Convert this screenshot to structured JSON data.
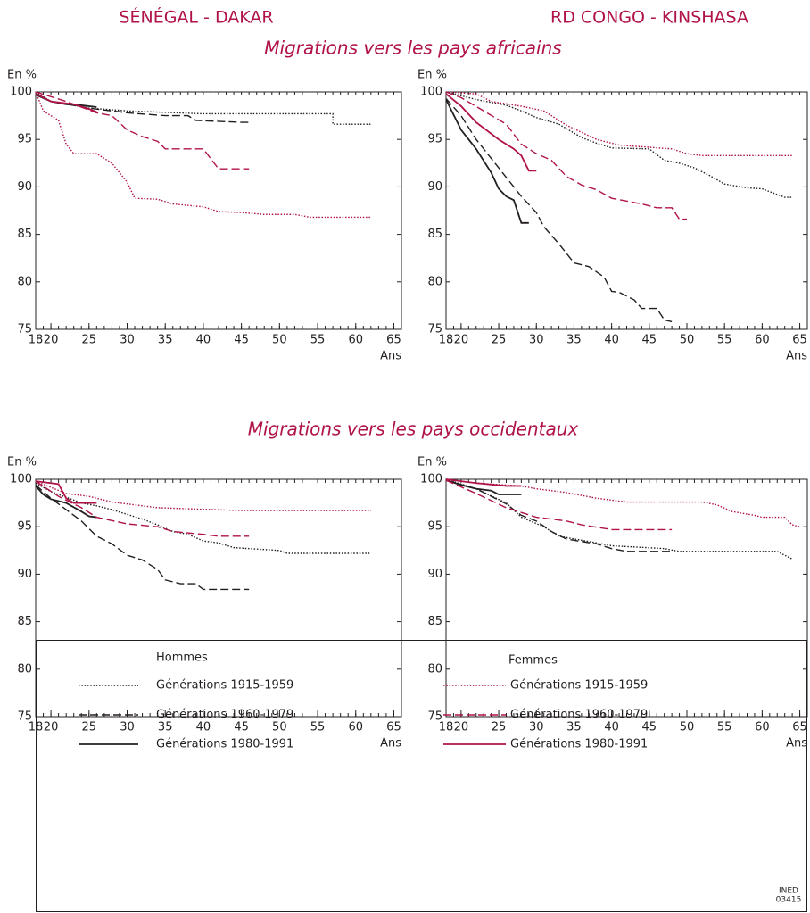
{
  "columns": [
    "SÉNÉGAL - DAKAR",
    "RD CONGO - KINSHASA"
  ],
  "rows": [
    "Migrations vers les pays africains",
    "Migrations vers les pays occidentaux"
  ],
  "legend": [
    {
      "title": "Hommes",
      "entries": [
        {
          "label": "Générations 1915-1959",
          "color": "#231f20",
          "dash": "dotted"
        },
        {
          "label": "Générations 1960-1979",
          "color": "#231f20",
          "dash": "dashed"
        },
        {
          "label": "Générations 1980-1991",
          "color": "#231f20",
          "dash": "solid"
        }
      ]
    },
    {
      "title": "Femmes",
      "entries": [
        {
          "label": "Générations 1915-1959",
          "color": "#b0124a",
          "dash": "dotted"
        },
        {
          "label": "Générations 1960-1979",
          "color": "#b0124a",
          "dash": "dashed"
        },
        {
          "label": "Générations 1980-1991",
          "color": "#b0124a",
          "dash": "solid"
        }
      ]
    }
  ],
  "source": [
    "INED",
    "03415"
  ],
  "chart_data": [
    {
      "type": "line",
      "ylabel": "En %",
      "xlabel": "Ans",
      "xlim": [
        18,
        66
      ],
      "ylim": [
        75,
        100
      ],
      "xticks": [
        18,
        20,
        25,
        30,
        35,
        40,
        45,
        50,
        55,
        60,
        65
      ],
      "yticks": [
        75,
        80,
        85,
        90,
        95,
        100
      ],
      "series": [
        {
          "color": "#231f20",
          "dash": "dotted",
          "x": [
            18,
            20,
            25,
            30,
            40,
            57,
            57,
            62
          ],
          "values": [
            100,
            99,
            98.3,
            98,
            97.7,
            97.7,
            96.6,
            96.6
          ]
        },
        {
          "color": "#231f20",
          "dash": "dashed",
          "x": [
            18,
            20,
            25,
            30,
            35,
            38,
            39,
            45,
            46
          ],
          "values": [
            99.8,
            99,
            98.3,
            97.8,
            97.5,
            97.5,
            97,
            96.8,
            96.8
          ]
        },
        {
          "color": "#231f20",
          "dash": "solid",
          "x": [
            18,
            20,
            22,
            24,
            26
          ],
          "values": [
            99.7,
            99,
            98.7,
            98.6,
            98.4
          ]
        },
        {
          "color": "#b0124a",
          "dash": "dotted",
          "x": [
            18,
            19,
            21,
            22,
            23,
            26,
            28,
            30,
            31,
            34,
            36,
            40,
            42,
            45,
            48,
            52,
            54,
            62
          ],
          "values": [
            100,
            98,
            97,
            94.5,
            93.5,
            93.5,
            92.5,
            90.5,
            88.8,
            88.7,
            88.2,
            87.9,
            87.4,
            87.3,
            87.1,
            87.1,
            86.8,
            86.8
          ]
        },
        {
          "color": "#b0124a",
          "dash": "dashed",
          "x": [
            18,
            22,
            26,
            28,
            30,
            32,
            34,
            35,
            40,
            42,
            46
          ],
          "values": [
            100,
            99,
            97.8,
            97.5,
            96,
            95.3,
            94.8,
            94,
            94,
            91.9,
            91.9
          ]
        },
        {
          "color": "#b0124a",
          "dash": "solid",
          "x": [
            18,
            20,
            23,
            25,
            26
          ],
          "values": [
            99.8,
            99,
            98.7,
            98.2,
            97.9
          ]
        }
      ]
    },
    {
      "type": "line",
      "ylabel": "En %",
      "xlabel": "Ans",
      "xlim": [
        18,
        66
      ],
      "ylim": [
        75,
        100
      ],
      "xticks": [
        18,
        20,
        25,
        30,
        35,
        40,
        45,
        50,
        55,
        60,
        65
      ],
      "yticks": [
        75,
        80,
        85,
        90,
        95,
        100
      ],
      "series": [
        {
          "color": "#231f20",
          "dash": "dotted",
          "x": [
            18,
            22,
            26,
            28,
            30,
            33,
            36,
            38,
            40,
            45,
            47,
            49,
            51,
            53,
            55,
            58,
            60,
            63,
            64
          ],
          "values": [
            100,
            99.2,
            98.6,
            98,
            97.3,
            96.6,
            95.2,
            94.6,
            94.1,
            94,
            92.8,
            92.5,
            92,
            91.2,
            90.3,
            89.9,
            89.8,
            88.9,
            88.9
          ]
        },
        {
          "color": "#231f20",
          "dash": "dashed",
          "x": [
            18,
            20,
            22,
            24,
            26,
            28,
            30,
            31,
            33,
            35,
            37,
            39,
            40,
            41,
            43,
            44,
            46,
            47,
            48
          ],
          "values": [
            99.3,
            97.5,
            95,
            93,
            91,
            89,
            87.3,
            85.8,
            84,
            82,
            81.6,
            80.5,
            79,
            78.9,
            78.1,
            77.2,
            77.2,
            76,
            75.8
          ]
        },
        {
          "color": "#231f20",
          "dash": "solid",
          "x": [
            18,
            20,
            21,
            22,
            24,
            25,
            26,
            27,
            28,
            29
          ],
          "values": [
            99.2,
            96,
            95,
            94,
            91.5,
            89.8,
            89,
            88.6,
            86.2,
            86.2
          ]
        },
        {
          "color": "#b0124a",
          "dash": "dotted",
          "x": [
            18,
            22,
            24,
            28,
            31,
            34,
            38,
            41,
            48,
            50,
            52,
            64
          ],
          "values": [
            100,
            99.8,
            99,
            98.5,
            98,
            96.5,
            95,
            94.4,
            94,
            93.5,
            93.3,
            93.3
          ]
        },
        {
          "color": "#b0124a",
          "dash": "dashed",
          "x": [
            18,
            20,
            23,
            26,
            28,
            30,
            32,
            34,
            36,
            38,
            40,
            44,
            46,
            48,
            49,
            50
          ],
          "values": [
            100,
            99.4,
            98,
            96.6,
            94.5,
            93.5,
            92.8,
            91.1,
            90.2,
            89.7,
            88.8,
            88.2,
            87.8,
            87.8,
            86.6,
            86.6
          ]
        },
        {
          "color": "#b0124a",
          "dash": "solid",
          "x": [
            18,
            20,
            22,
            25,
            27,
            28,
            29,
            30
          ],
          "values": [
            99.8,
            98.5,
            96.8,
            95,
            94,
            93.3,
            91.7,
            91.7
          ]
        }
      ]
    },
    {
      "type": "line",
      "ylabel": "En %",
      "xlabel": "Ans",
      "xlim": [
        18,
        66
      ],
      "ylim": [
        75,
        100
      ],
      "xticks": [
        18,
        20,
        25,
        30,
        35,
        40,
        45,
        50,
        55,
        60,
        65
      ],
      "yticks": [
        75,
        80,
        85,
        90,
        95,
        100
      ],
      "series": [
        {
          "color": "#231f20",
          "dash": "dotted",
          "x": [
            18,
            20,
            24,
            26,
            28,
            30,
            32,
            34,
            36,
            38,
            40,
            42,
            44,
            50,
            51,
            62
          ],
          "values": [
            99.6,
            98.7,
            97.5,
            97.2,
            96.8,
            96.3,
            95.8,
            95.2,
            94.5,
            94.2,
            93.5,
            93.3,
            92.8,
            92.5,
            92.2,
            92.2
          ]
        },
        {
          "color": "#231f20",
          "dash": "dashed",
          "x": [
            18,
            20,
            22,
            24,
            26,
            28,
            30,
            32,
            34,
            35,
            37,
            39,
            40,
            46
          ],
          "values": [
            99.4,
            98,
            96.8,
            95.6,
            94,
            93.2,
            92,
            91.5,
            90.5,
            89.4,
            89,
            89,
            88.4,
            88.4
          ]
        },
        {
          "color": "#231f20",
          "dash": "solid",
          "x": [
            18,
            19,
            20,
            22,
            24,
            25,
            26
          ],
          "values": [
            99.3,
            98.4,
            97.9,
            97.5,
            96.6,
            96.1,
            96
          ]
        },
        {
          "color": "#b0124a",
          "dash": "dotted",
          "x": [
            18,
            22,
            25,
            28,
            31,
            34,
            45,
            62
          ],
          "values": [
            99.8,
            98.5,
            98.2,
            97.6,
            97.3,
            97,
            96.7,
            96.7
          ]
        },
        {
          "color": "#b0124a",
          "dash": "dashed",
          "x": [
            18,
            21,
            24,
            26,
            30,
            34,
            36,
            40,
            42,
            46
          ],
          "values": [
            99.8,
            98.2,
            97,
            96,
            95.3,
            95,
            94.5,
            94.2,
            94,
            94
          ]
        },
        {
          "color": "#b0124a",
          "dash": "solid",
          "x": [
            18,
            21,
            22,
            23,
            26
          ],
          "values": [
            99.8,
            99.5,
            98,
            97.5,
            97.5
          ]
        }
      ]
    },
    {
      "type": "line",
      "ylabel": "En %",
      "xlabel": "Ans",
      "xlim": [
        18,
        66
      ],
      "ylim": [
        75,
        100
      ],
      "xticks": [
        18,
        20,
        25,
        30,
        35,
        40,
        45,
        50,
        55,
        60,
        65
      ],
      "yticks": [
        75,
        80,
        85,
        90,
        95,
        100
      ],
      "series": [
        {
          "color": "#231f20",
          "dash": "dotted",
          "x": [
            18,
            22,
            26,
            28,
            31,
            33,
            38,
            40,
            47,
            49,
            62,
            63,
            64
          ],
          "values": [
            100,
            99,
            97.5,
            96,
            95,
            94,
            93.3,
            93,
            92.7,
            92.4,
            92.4,
            92,
            91.6
          ]
        },
        {
          "color": "#231f20",
          "dash": "dashed",
          "x": [
            18,
            22,
            26,
            28,
            30,
            32,
            34,
            38,
            40,
            42,
            48
          ],
          "values": [
            99.9,
            99,
            97.4,
            96.2,
            95.6,
            94.5,
            93.7,
            93.2,
            92.7,
            92.4,
            92.4
          ]
        },
        {
          "color": "#231f20",
          "dash": "solid",
          "x": [
            18,
            20,
            22,
            24,
            25,
            28
          ],
          "values": [
            99.9,
            99.4,
            99,
            98.8,
            98.4,
            98.4
          ]
        },
        {
          "color": "#b0124a",
          "dash": "dotted",
          "x": [
            18,
            22,
            28,
            30,
            34,
            38,
            42,
            52,
            54,
            56,
            59,
            60,
            63,
            64,
            65
          ],
          "values": [
            100,
            99.6,
            99.3,
            99,
            98.6,
            98,
            97.6,
            97.6,
            97.3,
            96.6,
            96.2,
            96,
            96,
            95.2,
            95
          ]
        },
        {
          "color": "#b0124a",
          "dash": "dashed",
          "x": [
            18,
            22,
            26,
            30,
            34,
            36,
            40,
            48
          ],
          "values": [
            99.9,
            98.5,
            97,
            96,
            95.6,
            95.2,
            94.7,
            94.7
          ]
        },
        {
          "color": "#b0124a",
          "dash": "solid",
          "x": [
            18,
            22,
            26,
            28
          ],
          "values": [
            100,
            99.6,
            99.3,
            99.3
          ]
        }
      ]
    }
  ]
}
